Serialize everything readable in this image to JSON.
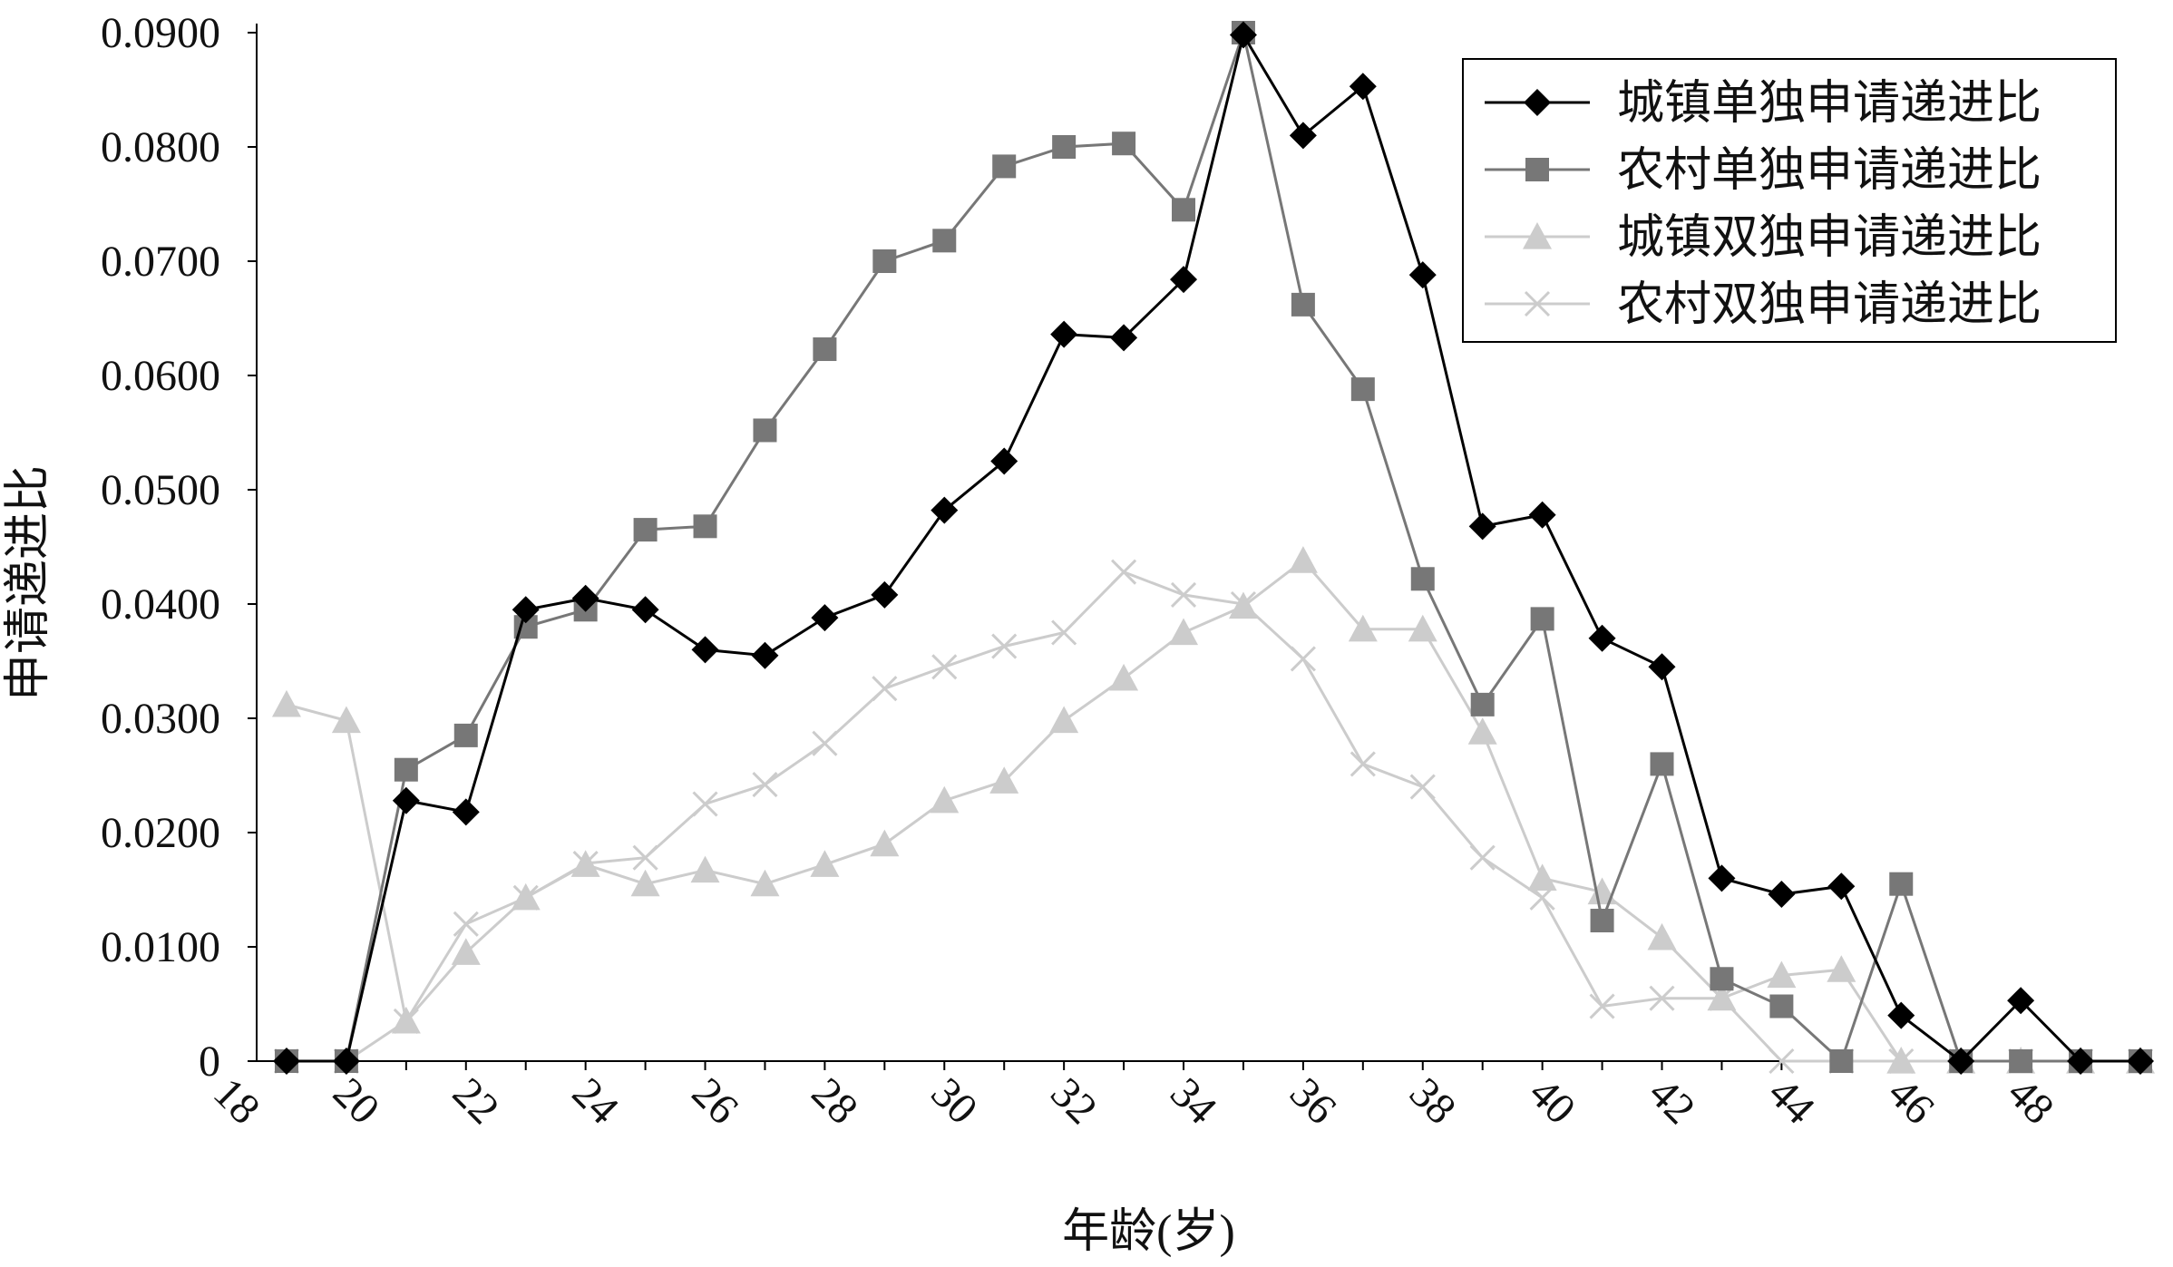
{
  "chart_data": {
    "type": "line",
    "xlabel": "年龄(岁)",
    "ylabel": "申请递进比",
    "x": [
      19,
      20,
      21,
      22,
      23,
      24,
      25,
      26,
      27,
      28,
      29,
      30,
      31,
      32,
      33,
      34,
      35,
      36,
      37,
      38,
      39,
      40,
      41,
      42,
      43,
      44,
      45,
      46,
      47,
      48,
      49,
      50
    ],
    "xlim": [
      18.5,
      50
    ],
    "ylim": [
      0,
      0.09
    ],
    "x_ticks": [
      "18",
      "20",
      "22",
      "24",
      "26",
      "28",
      "30",
      "32",
      "34",
      "36",
      "38",
      "40",
      "42",
      "44",
      "46",
      "48"
    ],
    "y_ticks": [
      "0",
      "0.0100",
      "0.0200",
      "0.0300",
      "0.0400",
      "0.0500",
      "0.0600",
      "0.0700",
      "0.0800",
      "0.0900"
    ],
    "grid": false,
    "legend_position": "top-right",
    "series": [
      {
        "name": "城镇单独申请递进比",
        "color": "#000000",
        "marker": "diamond",
        "values": [
          0,
          0,
          0.0228,
          0.0218,
          0.0395,
          0.0405,
          0.0395,
          0.036,
          0.0355,
          0.0388,
          0.0408,
          0.0482,
          0.0525,
          0.0636,
          0.0633,
          0.0684,
          0.0898,
          0.081,
          0.0853,
          0.0688,
          0.0468,
          0.0478,
          0.037,
          0.0345,
          0.016,
          0.0146,
          0.0153,
          0.004,
          0,
          0.0053,
          0,
          0
        ]
      },
      {
        "name": "农村单独申请递进比",
        "color": "#777777",
        "marker": "square",
        "values": [
          0,
          0,
          0.0255,
          0.0285,
          0.038,
          0.0395,
          0.0465,
          0.0468,
          0.0552,
          0.0623,
          0.07,
          0.0718,
          0.0783,
          0.08,
          0.0803,
          0.0745,
          0.09,
          0.0662,
          0.0588,
          0.0422,
          0.0312,
          0.0387,
          0.0123,
          0.026,
          0.0072,
          0.0048,
          0,
          0.0155,
          0,
          0,
          0,
          0
        ]
      },
      {
        "name": "城镇双独申请递进比",
        "color": "#cccccc",
        "marker": "triangle",
        "values": [
          0.0312,
          0.0298,
          0.0035,
          0.0095,
          0.0143,
          0.0172,
          0.0155,
          0.0167,
          0.0155,
          0.0172,
          0.019,
          0.0228,
          0.0245,
          0.0298,
          0.0335,
          0.0375,
          0.0398,
          0.0438,
          0.0378,
          0.0378,
          0.0288,
          0.016,
          0.0148,
          0.0108,
          0.0055,
          0.0075,
          0.008,
          0,
          0,
          0,
          0,
          0
        ]
      },
      {
        "name": "农村双独申请递进比",
        "color": "#cccccc",
        "marker": "x",
        "values": [
          0,
          0,
          0.0035,
          0.012,
          0.0143,
          0.0173,
          0.0178,
          0.0225,
          0.0242,
          0.0278,
          0.0326,
          0.0345,
          0.0363,
          0.0375,
          0.0428,
          0.0408,
          0.04,
          0.0352,
          0.026,
          0.024,
          0.0178,
          0.0143,
          0.0048,
          0.0055,
          0.0055,
          0,
          0,
          0,
          0,
          0,
          0,
          0
        ]
      }
    ]
  }
}
